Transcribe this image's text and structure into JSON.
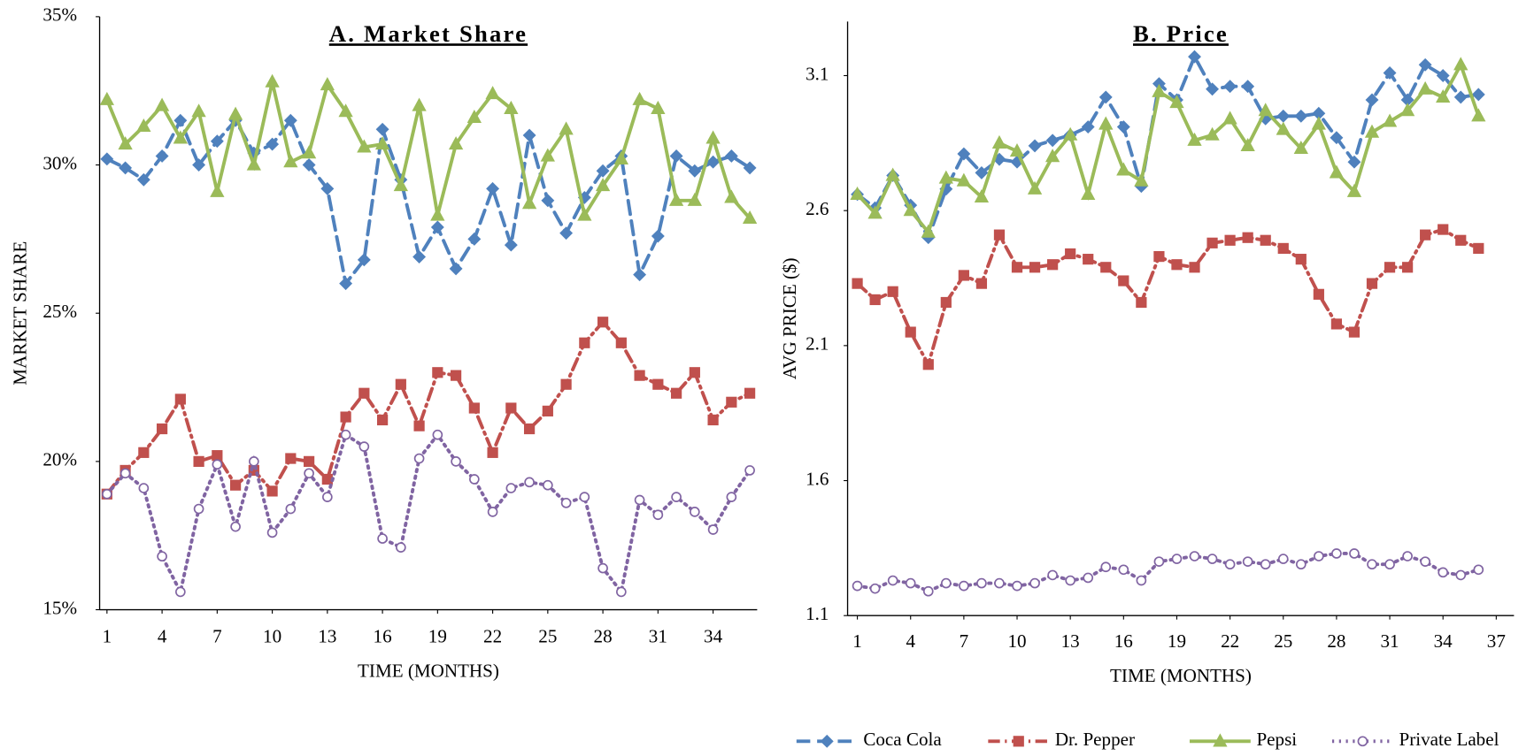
{
  "chart_data": [
    {
      "type": "line",
      "title": "A. Market Share",
      "x_label": "TIME (MONTHS)",
      "y_label": "MARKET SHARE",
      "x": [
        1,
        2,
        3,
        4,
        5,
        6,
        7,
        8,
        9,
        10,
        11,
        12,
        13,
        14,
        15,
        16,
        17,
        18,
        19,
        20,
        21,
        22,
        23,
        24,
        25,
        26,
        27,
        28,
        29,
        30,
        31,
        32,
        33,
        34,
        35,
        36
      ],
      "xlim": [
        0.6,
        36.4
      ],
      "xticks": [
        1,
        4,
        7,
        10,
        13,
        16,
        19,
        22,
        25,
        28,
        31,
        34
      ],
      "ylim": [
        15,
        35
      ],
      "yticks": [
        {
          "value": 15,
          "label": "15%"
        },
        {
          "value": 20,
          "label": "20%"
        },
        {
          "value": 25,
          "label": "25%"
        },
        {
          "value": 30,
          "label": "30%"
        },
        {
          "value": 35,
          "label": "35%"
        }
      ],
      "grid": false,
      "legend": "bottom-right",
      "series": [
        {
          "name": "Coca Cola",
          "color": "#4f81bd",
          "style": "dashed",
          "marker": "diamond",
          "values": [
            30.2,
            29.9,
            29.5,
            30.3,
            31.5,
            30.0,
            30.8,
            31.5,
            30.4,
            30.7,
            31.5,
            30.0,
            29.2,
            26.0,
            26.8,
            31.2,
            29.5,
            26.9,
            27.9,
            26.5,
            27.5,
            29.2,
            27.3,
            31.0,
            28.8,
            27.7,
            28.9,
            29.8,
            30.3,
            26.3,
            27.6,
            30.3,
            29.8,
            30.1,
            30.3,
            29.9
          ]
        },
        {
          "name": "Dr. Pepper",
          "color": "#c0504d",
          "style": "dashdot",
          "marker": "square",
          "values": [
            18.9,
            19.7,
            20.3,
            21.1,
            22.1,
            20.0,
            20.2,
            19.2,
            19.7,
            19.0,
            20.1,
            20.0,
            19.4,
            21.5,
            22.3,
            21.4,
            22.6,
            21.2,
            23.0,
            22.9,
            21.8,
            20.3,
            21.8,
            21.1,
            21.7,
            22.6,
            24.0,
            24.7,
            24.0,
            22.9,
            22.6,
            22.3,
            23.0,
            21.4,
            22.0,
            22.3
          ]
        },
        {
          "name": "Pepsi",
          "color": "#9bbb59",
          "style": "solid",
          "marker": "triangle",
          "values": [
            32.2,
            30.7,
            31.3,
            32.0,
            30.9,
            31.8,
            29.1,
            31.7,
            30.0,
            32.8,
            30.1,
            30.4,
            32.7,
            31.8,
            30.6,
            30.7,
            29.3,
            32.0,
            28.3,
            30.7,
            31.6,
            32.4,
            31.9,
            28.7,
            30.3,
            31.2,
            28.3,
            29.3,
            30.2,
            32.2,
            31.9,
            28.8,
            28.8,
            30.9,
            28.9,
            28.2
          ]
        },
        {
          "name": "Private Label",
          "color": "#8064a2",
          "style": "dotted",
          "marker": "circle",
          "values": [
            18.9,
            19.6,
            19.1,
            16.8,
            15.6,
            18.4,
            19.9,
            17.8,
            20.0,
            17.6,
            18.4,
            19.6,
            18.8,
            20.9,
            20.5,
            17.4,
            17.1,
            20.1,
            20.9,
            20.0,
            19.4,
            18.3,
            19.1,
            19.3,
            19.2,
            18.6,
            18.8,
            16.4,
            15.6,
            18.7,
            18.2,
            18.8,
            18.3,
            17.7,
            18.8,
            19.7
          ]
        }
      ]
    },
    {
      "type": "line",
      "title": "B. Price",
      "x_label": "TIME (MONTHS)",
      "y_label": "AVG PRICE  ($)",
      "x": [
        1,
        2,
        3,
        4,
        5,
        6,
        7,
        8,
        9,
        10,
        11,
        12,
        13,
        14,
        15,
        16,
        17,
        18,
        19,
        20,
        21,
        22,
        23,
        24,
        25,
        26,
        27,
        28,
        29,
        30,
        31,
        32,
        33,
        34,
        35,
        36
      ],
      "xlim": [
        0.45,
        38
      ],
      "xticks": [
        1,
        4,
        7,
        10,
        13,
        16,
        19,
        22,
        25,
        28,
        31,
        34,
        37
      ],
      "ylim": [
        1.1,
        3.3
      ],
      "yticks": [
        1.1,
        1.6,
        2.1,
        2.6,
        3.1
      ],
      "grid": false,
      "legend": false,
      "series": [
        {
          "name": "Coca Cola",
          "color": "#4f81bd",
          "style": "dashed",
          "marker": "diamond",
          "values": [
            2.66,
            2.61,
            2.73,
            2.62,
            2.5,
            2.68,
            2.81,
            2.74,
            2.79,
            2.78,
            2.84,
            2.86,
            2.88,
            2.91,
            3.02,
            2.91,
            2.69,
            3.07,
            3.01,
            3.17,
            3.05,
            3.06,
            3.06,
            2.94,
            2.95,
            2.95,
            2.96,
            2.87,
            2.78,
            3.01,
            3.11,
            3.01,
            3.14,
            3.1,
            3.02,
            3.03
          ]
        },
        {
          "name": "Dr. Pepper",
          "color": "#c0504d",
          "style": "dashdot",
          "marker": "square",
          "values": [
            2.33,
            2.27,
            2.3,
            2.15,
            2.03,
            2.26,
            2.36,
            2.33,
            2.51,
            2.39,
            2.39,
            2.4,
            2.44,
            2.42,
            2.39,
            2.34,
            2.26,
            2.43,
            2.4,
            2.39,
            2.48,
            2.49,
            2.5,
            2.49,
            2.46,
            2.42,
            2.29,
            2.18,
            2.15,
            2.33,
            2.39,
            2.39,
            2.51,
            2.53,
            2.49,
            2.46
          ]
        },
        {
          "name": "Pepsi",
          "color": "#9bbb59",
          "style": "solid",
          "marker": "triangle",
          "values": [
            2.66,
            2.59,
            2.73,
            2.6,
            2.52,
            2.72,
            2.71,
            2.65,
            2.85,
            2.82,
            2.68,
            2.8,
            2.88,
            2.66,
            2.92,
            2.75,
            2.71,
            3.04,
            3.0,
            2.86,
            2.88,
            2.94,
            2.84,
            2.97,
            2.9,
            2.83,
            2.92,
            2.74,
            2.67,
            2.89,
            2.93,
            2.97,
            3.05,
            3.02,
            3.14,
            2.95
          ]
        },
        {
          "name": "Private Label",
          "color": "#8064a2",
          "style": "dotted",
          "marker": "circle",
          "values": [
            1.21,
            1.2,
            1.23,
            1.22,
            1.19,
            1.22,
            1.21,
            1.22,
            1.22,
            1.21,
            1.22,
            1.25,
            1.23,
            1.24,
            1.28,
            1.27,
            1.23,
            1.3,
            1.31,
            1.32,
            1.31,
            1.29,
            1.3,
            1.29,
            1.31,
            1.29,
            1.32,
            1.33,
            1.33,
            1.29,
            1.29,
            1.32,
            1.3,
            1.26,
            1.25,
            1.27
          ]
        }
      ]
    }
  ]
}
